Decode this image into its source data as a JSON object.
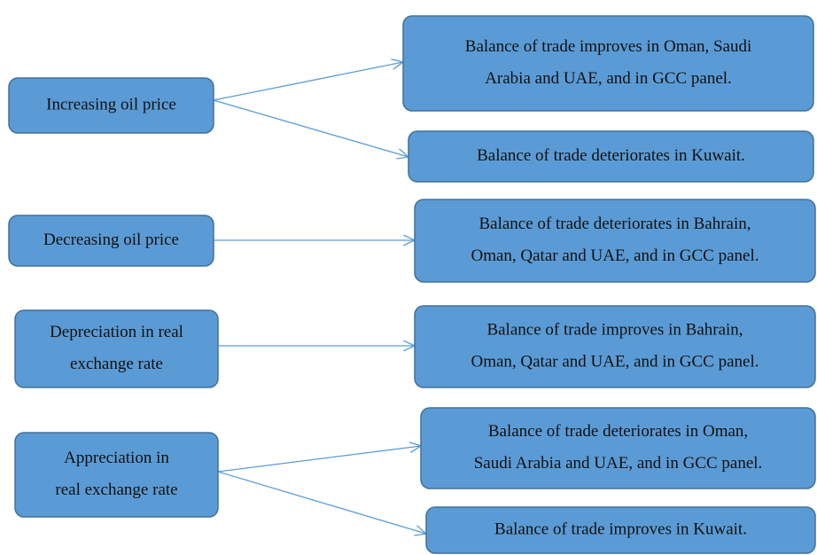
{
  "causes": [
    {
      "lines": [
        "Increasing oil price"
      ]
    },
    {
      "lines": [
        "Decreasing oil price"
      ]
    },
    {
      "lines": [
        "Depreciation in real",
        "exchange rate"
      ]
    },
    {
      "lines": [
        "Appreciation in",
        "real exchange rate"
      ]
    }
  ],
  "effects": [
    {
      "lines": [
        "Balance of trade improves in Oman, Saudi",
        "Arabia and UAE, and in GCC panel."
      ]
    },
    {
      "lines": [
        "Balance of trade deteriorates in Kuwait."
      ]
    },
    {
      "lines": [
        "Balance of trade deteriorates in Bahrain,",
        "Oman, Qatar and UAE, and in GCC panel."
      ]
    },
    {
      "lines": [
        "Balance of trade improves in Bahrain,",
        "Oman, Qatar and UAE, and in GCC panel."
      ]
    },
    {
      "lines": [
        "Balance of trade deteriorates in Oman,",
        "Saudi Arabia and UAE, and in GCC panel."
      ]
    },
    {
      "lines": [
        "Balance of trade improves in Kuwait."
      ]
    }
  ]
}
